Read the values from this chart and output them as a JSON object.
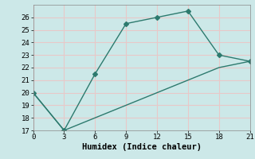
{
  "line1_x": [
    0,
    3,
    6,
    9,
    12,
    15,
    18,
    21
  ],
  "line1_y": [
    20,
    17,
    21.5,
    25.5,
    26,
    26.5,
    23,
    22.5
  ],
  "line2_x": [
    0,
    3,
    9,
    12,
    15,
    18,
    21
  ],
  "line2_y": [
    20,
    17,
    19,
    20,
    21,
    22,
    22.5
  ],
  "color": "#2d7a6e",
  "bg_color": "#cce8e8",
  "grid_color": "#e8c8c8",
  "xlabel": "Humidex (Indice chaleur)",
  "xlim": [
    0,
    21
  ],
  "ylim": [
    17,
    27
  ],
  "xticks": [
    0,
    3,
    6,
    9,
    12,
    15,
    18,
    21
  ],
  "yticks": [
    17,
    18,
    19,
    20,
    21,
    22,
    23,
    24,
    25,
    26
  ],
  "marker": "D",
  "markersize": 3,
  "linewidth": 1.0,
  "tick_labelsize": 6.5,
  "xlabel_fontsize": 7.5
}
